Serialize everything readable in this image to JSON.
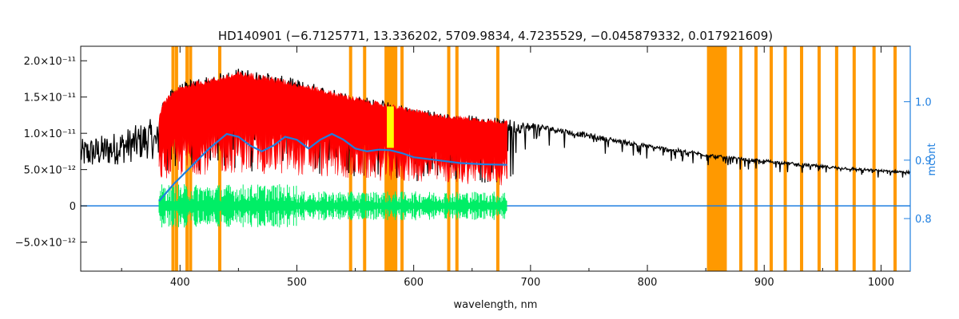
{
  "chart_data": {
    "type": "line",
    "title": "HD140901    (−6.7125771, 13.336202, 5709.9834, 4.7235529, −0.045879332, 0.017921609)",
    "xlabel": "wavelength, nm",
    "ylabel_left": "",
    "ylabel_right": "mcont",
    "xlim": [
      315,
      1025
    ],
    "ylim_left": [
      -9e-12,
      2.2e-11
    ],
    "ylim_right": [
      0.71,
      1.095
    ],
    "x_ticks": [
      400,
      500,
      600,
      700,
      800,
      900,
      1000
    ],
    "x_tick_labels": [
      "400",
      "500",
      "600",
      "700",
      "800",
      "900",
      "1000"
    ],
    "y_ticks_left": [
      -5e-12,
      0,
      5e-12,
      1e-11,
      1.5e-11,
      2e-11
    ],
    "y_tick_labels_left": [
      "−5.0×10⁻¹²",
      "0",
      "5.0×10⁻¹²",
      "1.0×10⁻¹¹",
      "1.5×10⁻¹¹",
      "2.0×10⁻¹¹"
    ],
    "y_ticks_right": [
      0.8,
      0.9,
      1.0
    ],
    "y_tick_labels_right": [
      "0.8",
      "0.9",
      "1.0"
    ],
    "colors": {
      "observed": "#000000",
      "model_fill": "#ff0000",
      "residuals": "#00ee66",
      "mcont": "#1f7fe0",
      "masks": "#ff9900",
      "highlight": "#ffff00",
      "axes": "#111111",
      "right_axis": "#1f7fe0"
    },
    "observed_envelope": {
      "x": [
        315,
        340,
        360,
        375,
        380,
        385,
        395,
        410,
        425,
        440,
        450,
        470,
        500,
        530,
        560,
        590,
        620,
        650,
        680,
        700,
        750,
        800,
        850,
        870,
        900,
        950,
        1000,
        1025
      ],
      "y": [
        9.2e-12,
        1e-11,
        1.1e-11,
        1.2e-11,
        1.1e-11,
        1.45e-11,
        1.65e-11,
        1.75e-11,
        1.8e-11,
        1.85e-11,
        1.9e-11,
        1.85e-11,
        1.75e-11,
        1.62e-11,
        1.5e-11,
        1.4e-11,
        1.3e-11,
        1.25e-11,
        1.2e-11,
        1.15e-11,
        1e-11,
        8.5e-12,
        7.3e-12,
        6.8e-12,
        6.4e-12,
        5.6e-12,
        5e-12,
        4.8e-12
      ]
    },
    "model_fill_range": [
      382,
      680
    ],
    "mcont": {
      "x": [
        382,
        395,
        410,
        425,
        440,
        450,
        460,
        470,
        480,
        490,
        500,
        510,
        520,
        530,
        540,
        550,
        560,
        570,
        580,
        590,
        600,
        620,
        640,
        660,
        680
      ],
      "y": [
        0.83,
        0.86,
        0.89,
        0.92,
        0.945,
        0.94,
        0.925,
        0.915,
        0.925,
        0.94,
        0.935,
        0.92,
        0.935,
        0.945,
        0.935,
        0.92,
        0.915,
        0.918,
        0.917,
        0.912,
        0.905,
        0.9,
        0.895,
        0.893,
        0.892
      ]
    },
    "residuals_range": [
      382,
      680
    ],
    "residual_amplitude": 2.5e-12,
    "zero_line": 0,
    "mask_lines": [
      394,
      397,
      406,
      409,
      434,
      546,
      558,
      590,
      630,
      637,
      672,
      880,
      893,
      906,
      918,
      932,
      947,
      962,
      977,
      994,
      1012
    ],
    "mask_bands": [
      [
        575,
        586
      ],
      [
        851,
        868
      ]
    ],
    "highlight_bands": [
      [
        577,
        583
      ]
    ]
  }
}
